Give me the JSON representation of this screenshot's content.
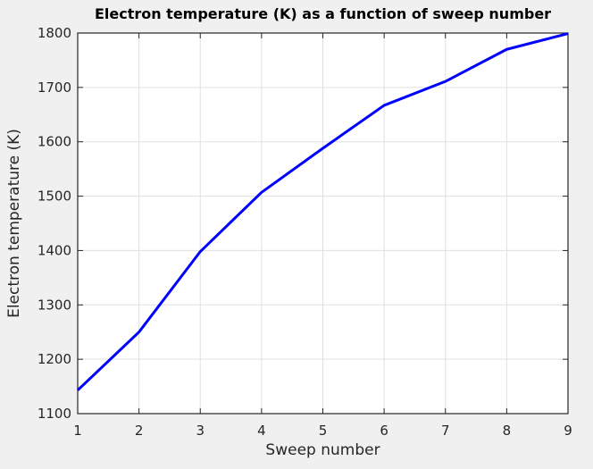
{
  "chart_data": {
    "type": "line",
    "title": "Electron temperature (K) as a function of sweep number",
    "xlabel": "Sweep number",
    "ylabel": "Electron temperature (K)",
    "x": [
      1,
      2,
      3,
      4,
      5,
      6,
      7,
      8,
      9
    ],
    "y": [
      1143,
      1250,
      1398,
      1507,
      1588,
      1667,
      1711,
      1770,
      1799
    ],
    "xlim": [
      1,
      9
    ],
    "ylim": [
      1100,
      1800
    ],
    "xticks": [
      1,
      2,
      3,
      4,
      5,
      6,
      7,
      8,
      9
    ],
    "yticks": [
      1100,
      1200,
      1300,
      1400,
      1500,
      1600,
      1700,
      1800
    ],
    "grid": true,
    "legend": "none",
    "line_width": 3
  },
  "colors": {
    "figure_bg": "#f0f0f0",
    "plot_bg": "#ffffff",
    "grid": "#e0e0e0",
    "axis": "#262626",
    "tick_label": "#262626",
    "title": "#000000",
    "line": "#0000ff"
  }
}
